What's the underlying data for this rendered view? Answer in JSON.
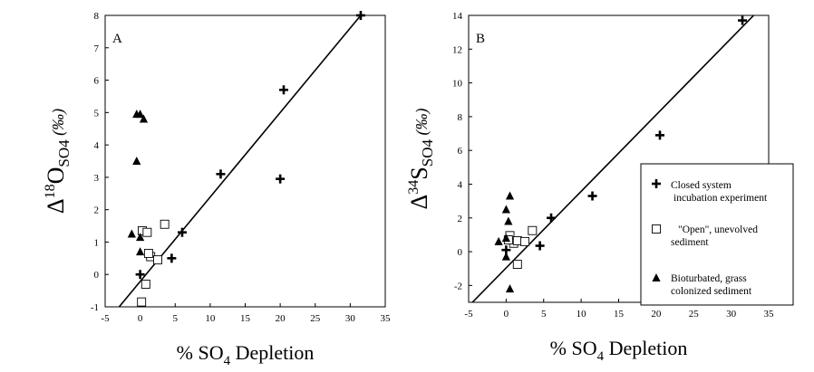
{
  "symbols": {
    "closed": "cross",
    "open": "open-square",
    "bioturbated": "filled-triangle"
  },
  "chart_data": [
    {
      "type": "scatter",
      "panel_label": "A",
      "xlabel": {
        "prefix": "% SO",
        "sub": "4",
        "suffix": " Depletion"
      },
      "ylabel": {
        "delta": "Δ",
        "sup": "18",
        "main": "O",
        "sub": "SO4",
        "unit": " (‰)"
      },
      "xlim": [
        -5,
        35
      ],
      "ylim": [
        -1,
        8
      ],
      "xticks": [
        -5,
        0,
        5,
        10,
        15,
        20,
        25,
        30,
        35
      ],
      "yticks": [
        -1,
        0,
        1,
        2,
        3,
        4,
        5,
        6,
        7,
        8
      ],
      "series": [
        {
          "symbol": "closed",
          "points": [
            [
              0,
              0
            ],
            [
              4.5,
              0.5
            ],
            [
              6,
              1.3
            ],
            [
              11.5,
              3.1
            ],
            [
              20,
              2.95
            ],
            [
              20.5,
              5.7
            ],
            [
              31.5,
              8
            ]
          ]
        },
        {
          "symbol": "open",
          "points": [
            [
              0.2,
              -0.85
            ],
            [
              0.8,
              -0.3
            ],
            [
              1.5,
              0.55
            ],
            [
              2.5,
              0.45
            ],
            [
              0.3,
              1.35
            ],
            [
              1.0,
              1.3
            ],
            [
              3.5,
              1.55
            ],
            [
              1.2,
              0.65
            ]
          ]
        },
        {
          "symbol": "bioturbated",
          "points": [
            [
              -0.5,
              4.95
            ],
            [
              0,
              4.95
            ],
            [
              0.5,
              4.8
            ],
            [
              -0.5,
              3.5
            ],
            [
              -1.2,
              1.25
            ],
            [
              0,
              1.15
            ],
            [
              0,
              0.7
            ]
          ]
        }
      ],
      "fit_line": [
        [
          -3,
          -1
        ],
        [
          31.5,
          8
        ]
      ]
    },
    {
      "type": "scatter",
      "panel_label": "B",
      "xlabel": {
        "prefix": "% SO",
        "sub": "4",
        "suffix": " Depletion"
      },
      "ylabel": {
        "delta": "Δ",
        "sup": "34",
        "main": "S",
        "sub": "SO4",
        "unit": " (‰)"
      },
      "xlim": [
        -5,
        35
      ],
      "ylim": [
        -3,
        14
      ],
      "xticks": [
        -5,
        0,
        5,
        10,
        15,
        20,
        25,
        30,
        35
      ],
      "yticks": [
        -2,
        0,
        2,
        4,
        6,
        8,
        10,
        12,
        14
      ],
      "series": [
        {
          "symbol": "closed",
          "points": [
            [
              0,
              0.1
            ],
            [
              4.5,
              0.35
            ],
            [
              6,
              2.0
            ],
            [
              11.5,
              3.3
            ],
            [
              20.5,
              6.9
            ],
            [
              31.5,
              13.7
            ]
          ]
        },
        {
          "symbol": "open",
          "points": [
            [
              0.5,
              0.95
            ],
            [
              1,
              0.5
            ],
            [
              1.5,
              0.65
            ],
            [
              2.5,
              0.6
            ],
            [
              3.5,
              1.25
            ],
            [
              1.5,
              -0.75
            ],
            [
              0.3,
              0.7
            ]
          ]
        },
        {
          "symbol": "bioturbated",
          "points": [
            [
              -1,
              0.6
            ],
            [
              0,
              0.8
            ],
            [
              0,
              2.5
            ],
            [
              0.3,
              1.8
            ],
            [
              0.5,
              3.3
            ],
            [
              0,
              -0.3
            ],
            [
              0.5,
              -2.2
            ]
          ]
        }
      ],
      "fit_line": [
        [
          -4.5,
          -3
        ],
        [
          33,
          14
        ]
      ],
      "legend": {
        "placement": "right",
        "entries": [
          {
            "symbol": "closed",
            "lines": [
              "Closed system",
              "incubation experiment"
            ]
          },
          {
            "symbol": "open",
            "lines": [
              "\"Open\", unevolved",
              "sediment"
            ]
          },
          {
            "symbol": "bioturbated",
            "lines": [
              "Bioturbated, grass",
              "colonized sediment"
            ]
          }
        ]
      }
    }
  ]
}
